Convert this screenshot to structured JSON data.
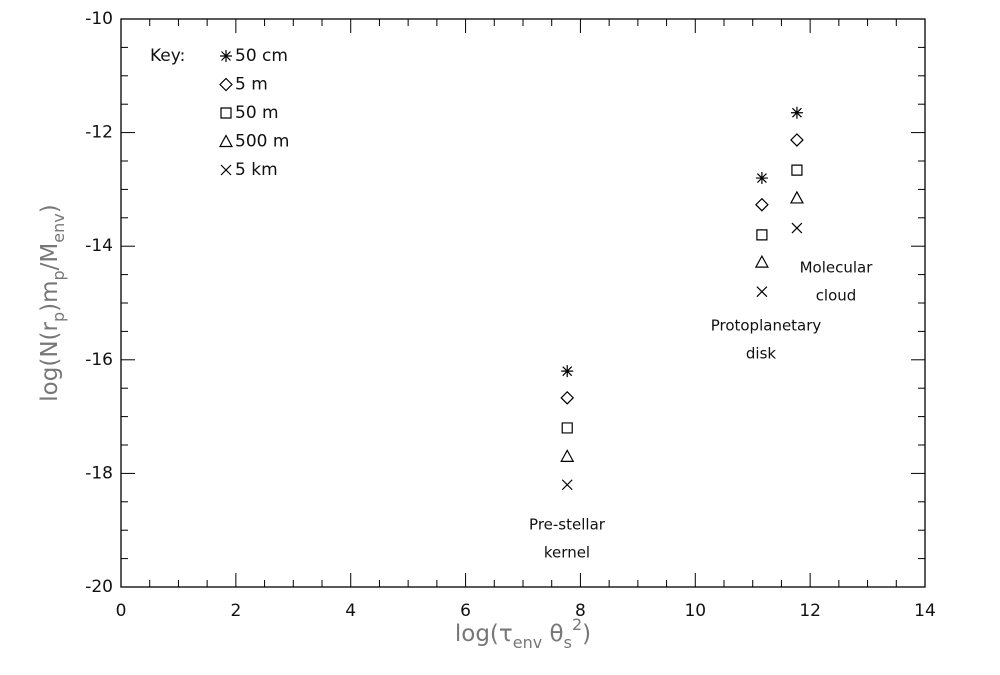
{
  "chart_data": {
    "type": "scatter",
    "x_label": [
      {
        "text": "log(τ",
        "shift": "base"
      },
      {
        "text": "env",
        "shift": "sub"
      },
      {
        "text": " θ",
        "shift": "base"
      },
      {
        "text": "s",
        "shift": "sub"
      },
      {
        "text": "2",
        "shift": "super"
      },
      {
        "text": ")",
        "shift": "base"
      }
    ],
    "y_label": [
      {
        "text": "log(N(r",
        "shift": "base"
      },
      {
        "text": "p",
        "shift": "sub"
      },
      {
        "text": ")m",
        "shift": "base"
      },
      {
        "text": "p",
        "shift": "sub"
      },
      {
        "text": "/M",
        "shift": "base"
      },
      {
        "text": "env",
        "shift": "sub"
      },
      {
        "text": ")",
        "shift": "base"
      }
    ],
    "xlim": [
      0,
      14
    ],
    "xticks": [
      0,
      2,
      4,
      6,
      8,
      10,
      12,
      14
    ],
    "ylim": [
      -20,
      -10
    ],
    "yticks": [
      -20,
      -18,
      -16,
      -14,
      -12,
      -10
    ],
    "legend_title": "Key:",
    "legend": "upper left",
    "series": [
      {
        "name": "50 cm",
        "marker": "asterisk",
        "color": "#000000",
        "x": [
          7.77,
          11.16,
          11.77
        ],
        "values": [
          -16.2,
          -12.8,
          -11.65
        ]
      },
      {
        "name": "5 m",
        "marker": "diamond",
        "color": "#000000",
        "x": [
          7.77,
          11.16,
          11.77
        ],
        "values": [
          -16.67,
          -13.27,
          -12.13
        ]
      },
      {
        "name": "50 m",
        "marker": "square",
        "color": "#000000",
        "x": [
          7.77,
          11.16,
          11.77
        ],
        "values": [
          -17.2,
          -13.8,
          -12.66
        ]
      },
      {
        "name": "500 m",
        "marker": "triangle",
        "color": "#000000",
        "x": [
          7.77,
          11.16,
          11.77
        ],
        "values": [
          -17.7,
          -14.28,
          -13.15
        ]
      },
      {
        "name": "5 km",
        "marker": "x",
        "color": "#000000",
        "x": [
          7.77,
          11.16,
          11.77
        ],
        "values": [
          -18.2,
          -14.8,
          -13.68
        ]
      }
    ],
    "annotations": [
      [
        "Pre-stellar",
        "kernel"
      ],
      [
        "Protoplanetary",
        "disk"
      ],
      [
        "Molecular",
        "cloud"
      ]
    ]
  }
}
